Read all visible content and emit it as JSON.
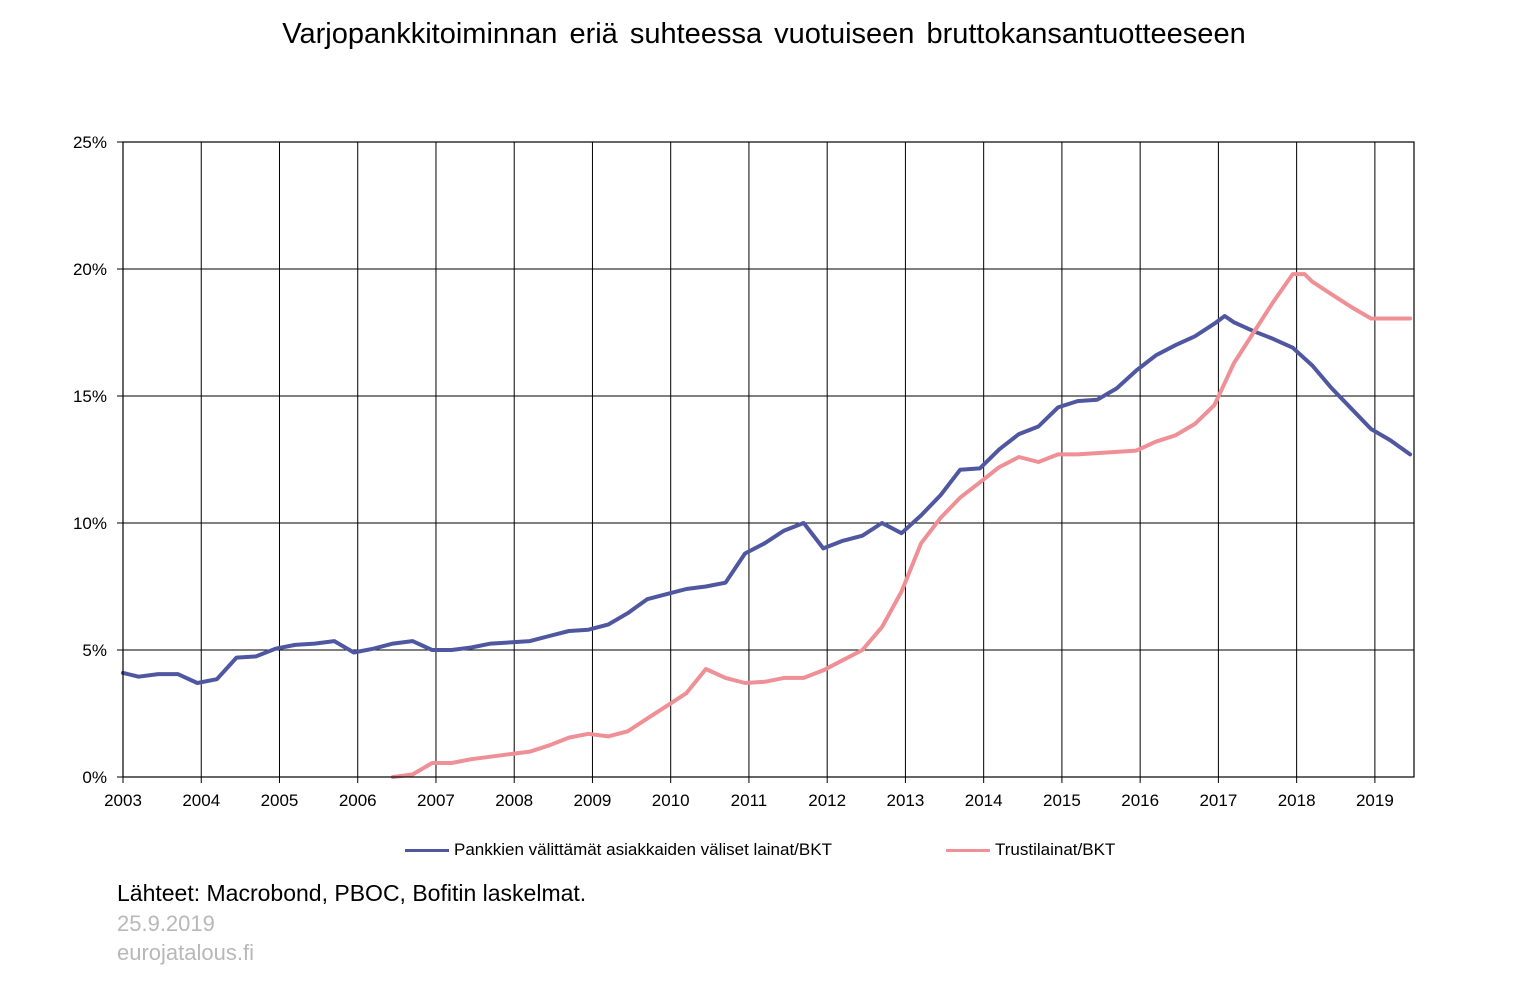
{
  "title": "Varjopankkitoiminnan eriä suhteessa vuotuiseen bruttokansantuotteeseen",
  "footer": {
    "source": "Lähteet: Macrobond, PBOC, Bofitin laskelmat.",
    "date": "25.9.2019",
    "site": "eurojatalous.fi"
  },
  "colors": {
    "series1": "#4f57a0",
    "series2": "#ef8f96",
    "grid": "#000000"
  },
  "chart_data": {
    "type": "line",
    "title": "Varjopankkitoiminnan eriä suhteessa vuotuiseen bruttokansantuotteeseen",
    "xlabel": "",
    "ylabel": "",
    "xlim": [
      2003,
      2019.5
    ],
    "ylim": [
      0,
      25
    ],
    "x_ticks": [
      "2003",
      "2004",
      "2005",
      "2006",
      "2007",
      "2008",
      "2009",
      "2010",
      "2011",
      "2012",
      "2013",
      "2014",
      "2015",
      "2016",
      "2017",
      "2018",
      "2019"
    ],
    "y_ticks": [
      "0%",
      "5%",
      "10%",
      "15%",
      "20%",
      "25%"
    ],
    "grid": true,
    "legend": "bottom",
    "series": [
      {
        "name": "Pankkien välittämät asiakkaiden väliset lainat/BKT",
        "color": "#4f57a0",
        "points": [
          [
            2003.0,
            4.1
          ],
          [
            2003.2,
            3.95
          ],
          [
            2003.45,
            4.05
          ],
          [
            2003.7,
            4.05
          ],
          [
            2003.95,
            3.7
          ],
          [
            2004.2,
            3.85
          ],
          [
            2004.45,
            4.7
          ],
          [
            2004.7,
            4.75
          ],
          [
            2004.95,
            5.05
          ],
          [
            2005.2,
            5.2
          ],
          [
            2005.45,
            5.25
          ],
          [
            2005.7,
            5.35
          ],
          [
            2005.95,
            4.9
          ],
          [
            2006.2,
            5.05
          ],
          [
            2006.45,
            5.25
          ],
          [
            2006.7,
            5.35
          ],
          [
            2006.95,
            5.0
          ],
          [
            2007.2,
            5.0
          ],
          [
            2007.45,
            5.1
          ],
          [
            2007.7,
            5.25
          ],
          [
            2007.95,
            5.3
          ],
          [
            2008.2,
            5.35
          ],
          [
            2008.45,
            5.55
          ],
          [
            2008.7,
            5.75
          ],
          [
            2008.95,
            5.8
          ],
          [
            2009.2,
            6.0
          ],
          [
            2009.45,
            6.45
          ],
          [
            2009.7,
            7.0
          ],
          [
            2009.95,
            7.2
          ],
          [
            2010.2,
            7.4
          ],
          [
            2010.45,
            7.5
          ],
          [
            2010.7,
            7.65
          ],
          [
            2010.95,
            8.8
          ],
          [
            2011.2,
            9.2
          ],
          [
            2011.45,
            9.7
          ],
          [
            2011.7,
            10.0
          ],
          [
            2011.95,
            9.0
          ],
          [
            2012.2,
            9.3
          ],
          [
            2012.45,
            9.5
          ],
          [
            2012.7,
            10.0
          ],
          [
            2012.95,
            9.6
          ],
          [
            2013.2,
            10.3
          ],
          [
            2013.45,
            11.1
          ],
          [
            2013.7,
            12.1
          ],
          [
            2013.95,
            12.15
          ],
          [
            2014.2,
            12.9
          ],
          [
            2014.45,
            13.5
          ],
          [
            2014.7,
            13.8
          ],
          [
            2014.95,
            14.55
          ],
          [
            2015.2,
            14.8
          ],
          [
            2015.45,
            14.85
          ],
          [
            2015.7,
            15.3
          ],
          [
            2015.95,
            16.0
          ],
          [
            2016.2,
            16.6
          ],
          [
            2016.45,
            17.0
          ],
          [
            2016.7,
            17.35
          ],
          [
            2016.95,
            17.85
          ],
          [
            2017.08,
            18.15
          ],
          [
            2017.2,
            17.9
          ],
          [
            2017.45,
            17.55
          ],
          [
            2017.7,
            17.25
          ],
          [
            2017.95,
            16.9
          ],
          [
            2018.2,
            16.2
          ],
          [
            2018.45,
            15.3
          ],
          [
            2018.7,
            14.5
          ],
          [
            2018.95,
            13.7
          ],
          [
            2019.2,
            13.25
          ],
          [
            2019.45,
            12.7
          ]
        ]
      },
      {
        "name": "Trustilainat/BKT",
        "color": "#ef8f96",
        "points": [
          [
            2006.45,
            0.0
          ],
          [
            2006.7,
            0.1
          ],
          [
            2006.95,
            0.55
          ],
          [
            2007.2,
            0.55
          ],
          [
            2007.45,
            0.7
          ],
          [
            2007.7,
            0.8
          ],
          [
            2007.95,
            0.9
          ],
          [
            2008.2,
            1.0
          ],
          [
            2008.45,
            1.25
          ],
          [
            2008.7,
            1.55
          ],
          [
            2008.95,
            1.7
          ],
          [
            2009.2,
            1.6
          ],
          [
            2009.45,
            1.8
          ],
          [
            2009.7,
            2.3
          ],
          [
            2009.95,
            2.8
          ],
          [
            2010.2,
            3.3
          ],
          [
            2010.45,
            4.25
          ],
          [
            2010.7,
            3.9
          ],
          [
            2010.95,
            3.7
          ],
          [
            2011.2,
            3.75
          ],
          [
            2011.45,
            3.9
          ],
          [
            2011.7,
            3.9
          ],
          [
            2011.95,
            4.2
          ],
          [
            2012.2,
            4.6
          ],
          [
            2012.45,
            5.0
          ],
          [
            2012.7,
            5.9
          ],
          [
            2012.95,
            7.3
          ],
          [
            2013.2,
            9.2
          ],
          [
            2013.45,
            10.2
          ],
          [
            2013.7,
            11.0
          ],
          [
            2013.95,
            11.6
          ],
          [
            2014.2,
            12.2
          ],
          [
            2014.45,
            12.6
          ],
          [
            2014.7,
            12.4
          ],
          [
            2014.95,
            12.7
          ],
          [
            2015.2,
            12.7
          ],
          [
            2015.45,
            12.75
          ],
          [
            2015.7,
            12.8
          ],
          [
            2015.95,
            12.85
          ],
          [
            2016.2,
            13.2
          ],
          [
            2016.45,
            13.45
          ],
          [
            2016.7,
            13.9
          ],
          [
            2016.95,
            14.65
          ],
          [
            2017.2,
            16.3
          ],
          [
            2017.45,
            17.5
          ],
          [
            2017.7,
            18.7
          ],
          [
            2017.95,
            19.8
          ],
          [
            2018.1,
            19.8
          ],
          [
            2018.2,
            19.5
          ],
          [
            2018.45,
            19.0
          ],
          [
            2018.7,
            18.5
          ],
          [
            2018.95,
            18.05
          ],
          [
            2019.2,
            18.05
          ],
          [
            2019.45,
            18.05
          ]
        ]
      }
    ]
  }
}
